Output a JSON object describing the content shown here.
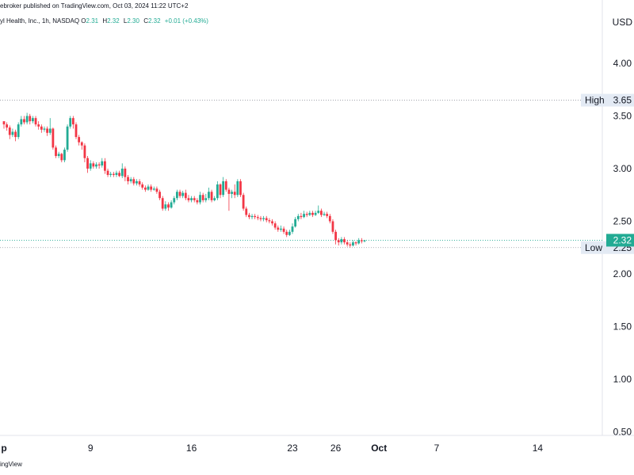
{
  "header": {
    "publisher": "ebroker published on TradingView.com, Oct 03, 2024 11:22 UTC+2",
    "symbol": "yl Health, Inc., 1h, NASDAQ",
    "ohlc": [
      {
        "label": "O",
        "value": "2.31"
      },
      {
        "label": "H",
        "value": "2.32"
      },
      {
        "label": "L",
        "value": "2.30"
      },
      {
        "label": "C",
        "value": "2.32"
      }
    ],
    "change": "+0.01 (+0.43%)"
  },
  "currency": "USD",
  "footer": {
    "brand": "ingView"
  },
  "colors": {
    "up": "#22ab94",
    "down": "#f23645",
    "grid": "#d6dce6",
    "current": "#22ab94"
  },
  "chart_data": {
    "type": "candlestick",
    "y_axis": {
      "ticks": [
        {
          "value": 4.0,
          "label": "4.00"
        },
        {
          "value": 3.5,
          "label": "3.50"
        },
        {
          "value": 3.0,
          "label": "3.00"
        },
        {
          "value": 2.5,
          "label": "2.50"
        },
        {
          "value": 2.0,
          "label": "2.00"
        },
        {
          "value": 1.5,
          "label": "1.50"
        },
        {
          "value": 1.0,
          "label": "1.00"
        },
        {
          "value": 0.5,
          "label": "0.50"
        }
      ]
    },
    "x_axis": {
      "ticks": [
        {
          "label": "p",
          "day": 0,
          "bold": true
        },
        {
          "label": "9",
          "day": 6,
          "bold": false
        },
        {
          "label": "16",
          "day": 13,
          "bold": false
        },
        {
          "label": "23",
          "day": 20,
          "bold": false
        },
        {
          "label": "26",
          "day": 23,
          "bold": false
        },
        {
          "label": "Oct",
          "day": 26,
          "bold": true
        },
        {
          "label": "7",
          "day": 30,
          "bold": false
        },
        {
          "label": "14",
          "day": 37,
          "bold": false
        }
      ]
    },
    "levels": [
      {
        "name": "High",
        "value": 3.65,
        "label": "3.65"
      },
      {
        "name": "Low",
        "value": 2.25,
        "label": "2.25"
      }
    ],
    "current_price": {
      "value": 2.32,
      "label": "2.32"
    },
    "candles": [
      [
        0.0,
        3.45,
        3.42,
        3.45,
        3.38
      ],
      [
        0.2,
        3.42,
        3.39,
        3.44,
        3.36
      ],
      [
        0.4,
        3.39,
        3.32,
        3.41,
        3.28
      ],
      [
        0.6,
        3.32,
        3.35,
        3.38,
        3.3
      ],
      [
        0.8,
        3.35,
        3.3,
        3.37,
        3.26
      ],
      [
        1.0,
        3.3,
        3.42,
        3.44,
        3.28
      ],
      [
        1.2,
        3.42,
        3.47,
        3.5,
        3.4
      ],
      [
        1.4,
        3.47,
        3.44,
        3.5,
        3.42
      ],
      [
        1.6,
        3.44,
        3.5,
        3.53,
        3.42
      ],
      [
        1.8,
        3.5,
        3.45,
        3.52,
        3.42
      ],
      [
        2.0,
        3.45,
        3.48,
        3.5,
        3.43
      ],
      [
        2.2,
        3.48,
        3.42,
        3.5,
        3.4
      ],
      [
        2.4,
        3.42,
        3.4,
        3.45,
        3.37
      ],
      [
        2.6,
        3.4,
        3.37,
        3.42,
        3.34
      ],
      [
        2.8,
        3.37,
        3.38,
        3.4,
        3.35
      ],
      [
        3.0,
        3.38,
        3.34,
        3.4,
        3.31
      ],
      [
        3.2,
        3.34,
        3.38,
        3.48,
        3.32
      ],
      [
        3.4,
        3.38,
        3.2,
        3.39,
        3.18
      ],
      [
        3.6,
        3.2,
        3.12,
        3.22,
        3.1
      ],
      [
        3.8,
        3.12,
        3.14,
        3.16,
        3.1
      ],
      [
        4.0,
        3.14,
        3.08,
        3.15,
        3.06
      ],
      [
        4.2,
        3.08,
        3.18,
        3.2,
        3.06
      ],
      [
        4.4,
        3.18,
        3.4,
        3.42,
        3.16
      ],
      [
        4.6,
        3.4,
        3.48,
        3.5,
        3.38
      ],
      [
        4.8,
        3.48,
        3.42,
        3.5,
        3.38
      ],
      [
        5.0,
        3.42,
        3.3,
        3.44,
        3.28
      ],
      [
        5.2,
        3.3,
        3.25,
        3.32,
        3.22
      ],
      [
        5.4,
        3.25,
        3.22,
        3.26,
        3.18
      ],
      [
        5.6,
        3.22,
        3.1,
        3.24,
        3.06
      ],
      [
        5.8,
        3.1,
        3.0,
        3.12,
        2.96
      ],
      [
        6.0,
        3.0,
        3.05,
        3.08,
        2.98
      ],
      [
        6.2,
        3.05,
        3.02,
        3.07,
        3.0
      ],
      [
        6.4,
        3.02,
        3.04,
        3.06,
        3.0
      ],
      [
        6.6,
        3.04,
        3.03,
        3.06,
        3.0
      ],
      [
        6.8,
        3.03,
        3.07,
        3.1,
        3.01
      ],
      [
        7.0,
        3.07,
        2.98,
        3.1,
        2.95
      ],
      [
        7.2,
        2.98,
        2.94,
        3.0,
        2.92
      ],
      [
        7.4,
        2.94,
        2.95,
        2.97,
        2.92
      ],
      [
        7.6,
        2.95,
        2.94,
        2.97,
        2.92
      ],
      [
        7.8,
        2.94,
        2.96,
        2.98,
        2.92
      ],
      [
        8.0,
        2.96,
        2.93,
        2.98,
        2.92
      ],
      [
        8.2,
        2.93,
        3.0,
        3.05,
        2.91
      ],
      [
        8.4,
        3.0,
        2.92,
        3.02,
        2.88
      ],
      [
        8.6,
        2.92,
        2.88,
        2.94,
        2.85
      ],
      [
        8.8,
        2.88,
        2.9,
        2.92,
        2.86
      ],
      [
        9.0,
        2.9,
        2.86,
        2.92,
        2.84
      ],
      [
        9.2,
        2.86,
        2.88,
        2.9,
        2.84
      ],
      [
        9.4,
        2.88,
        2.85,
        2.9,
        2.83
      ],
      [
        9.6,
        2.85,
        2.82,
        2.87,
        2.8
      ],
      [
        9.8,
        2.82,
        2.8,
        2.84,
        2.78
      ],
      [
        10.0,
        2.8,
        2.83,
        2.85,
        2.79
      ],
      [
        10.2,
        2.83,
        2.8,
        2.85,
        2.78
      ],
      [
        10.4,
        2.8,
        2.81,
        2.83,
        2.79
      ],
      [
        10.6,
        2.81,
        2.78,
        2.83,
        2.76
      ],
      [
        10.8,
        2.78,
        2.72,
        2.8,
        2.7
      ],
      [
        11.0,
        2.72,
        2.62,
        2.74,
        2.6
      ],
      [
        11.2,
        2.62,
        2.66,
        2.69,
        2.6
      ],
      [
        11.4,
        2.66,
        2.63,
        2.68,
        2.6
      ],
      [
        11.6,
        2.63,
        2.68,
        2.7,
        2.62
      ],
      [
        11.8,
        2.68,
        2.72,
        2.74,
        2.66
      ],
      [
        12.0,
        2.72,
        2.78,
        2.8,
        2.7
      ],
      [
        12.2,
        2.78,
        2.74,
        2.8,
        2.72
      ],
      [
        12.4,
        2.74,
        2.77,
        2.79,
        2.72
      ],
      [
        12.6,
        2.77,
        2.72,
        2.8,
        2.7
      ],
      [
        12.8,
        2.72,
        2.7,
        2.75,
        2.68
      ],
      [
        13.0,
        2.7,
        2.72,
        2.74,
        2.68
      ],
      [
        13.2,
        2.72,
        2.7,
        2.74,
        2.68
      ],
      [
        13.4,
        2.7,
        2.68,
        2.72,
        2.66
      ],
      [
        13.6,
        2.68,
        2.75,
        2.78,
        2.66
      ],
      [
        13.8,
        2.75,
        2.7,
        2.77,
        2.68
      ],
      [
        14.0,
        2.7,
        2.72,
        2.76,
        2.68
      ],
      [
        14.2,
        2.72,
        2.78,
        2.82,
        2.7
      ],
      [
        14.4,
        2.78,
        2.7,
        2.8,
        2.68
      ],
      [
        14.6,
        2.7,
        2.72,
        2.74,
        2.69
      ],
      [
        14.8,
        2.72,
        2.85,
        2.88,
        2.7
      ],
      [
        15.0,
        2.85,
        2.75,
        2.86,
        2.72
      ],
      [
        15.2,
        2.75,
        2.88,
        2.92,
        2.73
      ],
      [
        15.4,
        2.88,
        2.8,
        2.9,
        2.78
      ],
      [
        15.6,
        2.8,
        2.76,
        2.82,
        2.6
      ],
      [
        15.8,
        2.76,
        2.78,
        2.8,
        2.72
      ],
      [
        16.0,
        2.78,
        2.75,
        2.85,
        2.72
      ],
      [
        16.2,
        2.75,
        2.88,
        2.9,
        2.73
      ],
      [
        16.4,
        2.88,
        2.75,
        2.9,
        2.73
      ],
      [
        16.6,
        2.75,
        2.62,
        2.77,
        2.6
      ],
      [
        16.8,
        2.62,
        2.56,
        2.64,
        2.54
      ],
      [
        17.0,
        2.56,
        2.54,
        2.58,
        2.52
      ],
      [
        17.2,
        2.54,
        2.55,
        2.57,
        2.52
      ],
      [
        17.4,
        2.55,
        2.54,
        2.57,
        2.52
      ],
      [
        17.6,
        2.54,
        2.53,
        2.56,
        2.51
      ],
      [
        17.8,
        2.53,
        2.52,
        2.55,
        2.5
      ],
      [
        18.0,
        2.52,
        2.53,
        2.55,
        2.5
      ],
      [
        18.2,
        2.53,
        2.51,
        2.55,
        2.49
      ],
      [
        18.4,
        2.51,
        2.5,
        2.53,
        2.48
      ],
      [
        18.6,
        2.5,
        2.48,
        2.52,
        2.46
      ],
      [
        18.8,
        2.48,
        2.44,
        2.5,
        2.42
      ],
      [
        19.0,
        2.44,
        2.42,
        2.46,
        2.4
      ],
      [
        19.2,
        2.42,
        2.43,
        2.46,
        2.4
      ],
      [
        19.4,
        2.43,
        2.4,
        2.45,
        2.38
      ],
      [
        19.6,
        2.4,
        2.37,
        2.42,
        2.35
      ],
      [
        19.8,
        2.37,
        2.4,
        2.42,
        2.36
      ],
      [
        20.0,
        2.4,
        2.45,
        2.48,
        2.38
      ],
      [
        20.2,
        2.45,
        2.52,
        2.54,
        2.44
      ],
      [
        20.4,
        2.52,
        2.55,
        2.57,
        2.5
      ],
      [
        20.6,
        2.55,
        2.54,
        2.58,
        2.52
      ],
      [
        20.8,
        2.54,
        2.57,
        2.6,
        2.53
      ],
      [
        21.0,
        2.57,
        2.56,
        2.59,
        2.54
      ],
      [
        21.2,
        2.56,
        2.58,
        2.6,
        2.55
      ],
      [
        21.4,
        2.58,
        2.56,
        2.6,
        2.54
      ],
      [
        21.6,
        2.56,
        2.58,
        2.6,
        2.55
      ],
      [
        21.8,
        2.58,
        2.6,
        2.65,
        2.57
      ],
      [
        22.0,
        2.6,
        2.56,
        2.62,
        2.54
      ],
      [
        22.2,
        2.56,
        2.57,
        2.59,
        2.55
      ],
      [
        22.4,
        2.57,
        2.55,
        2.59,
        2.53
      ],
      [
        22.6,
        2.55,
        2.5,
        2.57,
        2.48
      ],
      [
        22.8,
        2.5,
        2.4,
        2.52,
        2.38
      ],
      [
        23.0,
        2.4,
        2.32,
        2.42,
        2.28
      ],
      [
        23.2,
        2.32,
        2.3,
        2.34,
        2.27
      ],
      [
        23.4,
        2.3,
        2.33,
        2.35,
        2.28
      ],
      [
        23.6,
        2.33,
        2.3,
        2.35,
        2.28
      ],
      [
        23.8,
        2.3,
        2.28,
        2.32,
        2.26
      ],
      [
        24.0,
        2.28,
        2.27,
        2.3,
        2.25
      ],
      [
        24.2,
        2.27,
        2.3,
        2.32,
        2.26
      ],
      [
        24.4,
        2.3,
        2.29,
        2.31,
        2.27
      ],
      [
        24.6,
        2.29,
        2.32,
        2.34,
        2.28
      ],
      [
        24.8,
        2.32,
        2.31,
        2.34,
        2.29
      ],
      [
        25.0,
        2.31,
        2.32,
        2.32,
        2.3
      ]
    ]
  }
}
